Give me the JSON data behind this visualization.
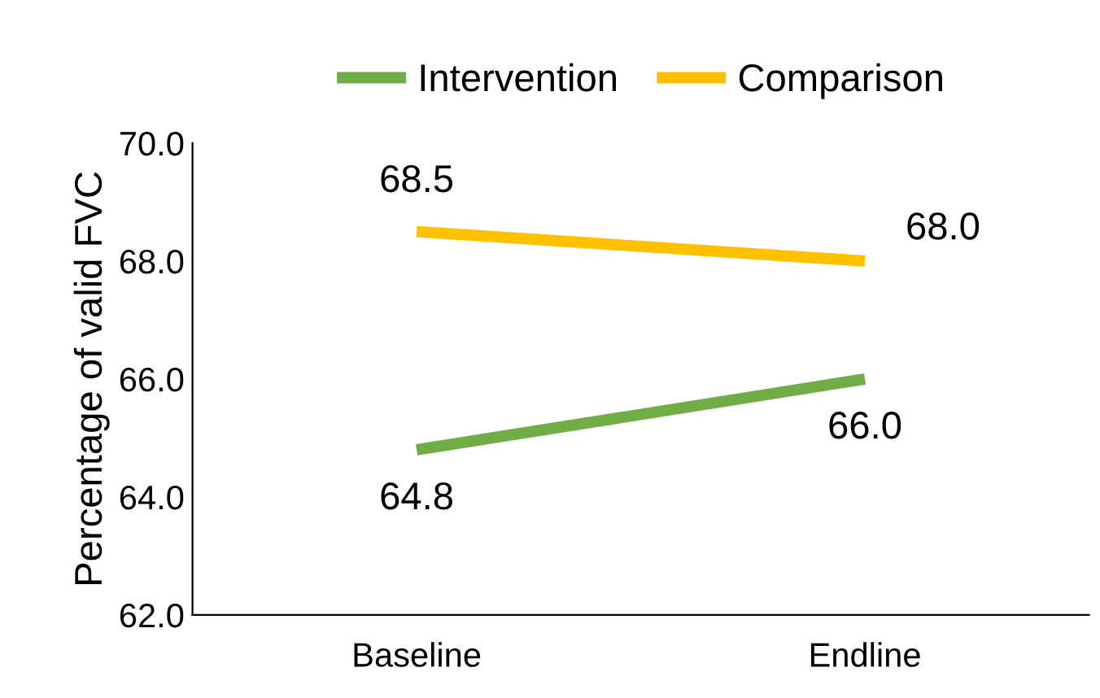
{
  "chart_data": {
    "type": "line",
    "ylabel": "Percentage of valid FVC",
    "categories": [
      "Baseline",
      "Endline"
    ],
    "series": [
      {
        "name": "Intervention",
        "color": "#70ad47",
        "values": [
          64.8,
          66.0
        ],
        "value_labels": [
          "64.8",
          "66.0"
        ]
      },
      {
        "name": "Comparison",
        "color": "#ffc000",
        "values": [
          68.5,
          68.0
        ],
        "value_labels": [
          "68.5",
          "68.0"
        ]
      }
    ],
    "ylim": [
      62,
      70
    ],
    "yticks": [
      {
        "value": 62,
        "label": "62.0"
      },
      {
        "value": 64,
        "label": "64.0"
      },
      {
        "value": 66,
        "label": "66.0"
      },
      {
        "value": 68,
        "label": "68.0"
      },
      {
        "value": 70,
        "label": "70.0"
      }
    ],
    "grid": false,
    "legend": "top",
    "marker": "none",
    "line_style": "solid"
  }
}
